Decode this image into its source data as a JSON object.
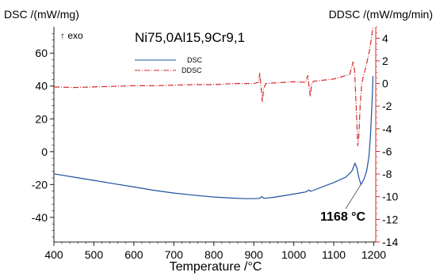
{
  "chart_data": {
    "type": "line",
    "title": "Ni75,0Al15,9Cr9,1",
    "xlabel": "Temperature /°C",
    "ylabel_left": "DSC /(mW/mg)",
    "ylabel_right": "DDSC /(mW/mg/min)",
    "exo_label": "↑ exo",
    "xlim": [
      400,
      1205
    ],
    "ylim_left": [
      -55,
      76
    ],
    "ylim_right": [
      -14,
      5
    ],
    "x_ticks": [
      400,
      500,
      600,
      700,
      800,
      900,
      1000,
      1100,
      1200
    ],
    "y_left_ticks": [
      60,
      40,
      20,
      0,
      -20,
      -40
    ],
    "y_right_ticks": [
      4,
      2,
      0,
      -2,
      -4,
      -6,
      -8,
      -10,
      -12,
      -14
    ],
    "grid": false,
    "legend_position": "top-center",
    "annotation": {
      "text": "1168 °C",
      "x": 1168,
      "y": -20,
      "axis": "left",
      "color": "#1f4fa0"
    },
    "series": [
      {
        "name": "DSC",
        "axis": "left",
        "color": "#1f4fa0",
        "style": "solid",
        "x": [
          400,
          450,
          500,
          550,
          600,
          650,
          700,
          750,
          800,
          850,
          880,
          900,
          915,
          920,
          925,
          950,
          1000,
          1030,
          1038,
          1042,
          1060,
          1100,
          1130,
          1145,
          1150,
          1153,
          1158,
          1163,
          1168,
          1175,
          1182,
          1188,
          1192,
          1196,
          1198
        ],
        "values": [
          -13.5,
          -15.5,
          -17.5,
          -19.5,
          -21.5,
          -23.5,
          -25.2,
          -26.5,
          -27.6,
          -28.3,
          -28.6,
          -28.6,
          -28.4,
          -27.3,
          -28.4,
          -27.8,
          -25.8,
          -24.5,
          -23.3,
          -24.2,
          -22.5,
          -18.8,
          -15.5,
          -12,
          -9,
          -7,
          -10,
          -16,
          -20,
          -17,
          -12,
          -3,
          10,
          32,
          46
        ]
      },
      {
        "name": "DDSC",
        "axis": "right",
        "color": "#d42a2a",
        "style": "dashdot",
        "x": [
          400,
          450,
          500,
          550,
          600,
          650,
          700,
          750,
          800,
          850,
          900,
          912,
          915,
          918,
          921,
          925,
          930,
          950,
          1000,
          1030,
          1035,
          1038,
          1041,
          1045,
          1050,
          1100,
          1140,
          1148,
          1152,
          1156,
          1160,
          1163,
          1166,
          1170,
          1175,
          1180,
          1185,
          1190,
          1194,
          1198
        ],
        "values": [
          -0.3,
          -0.35,
          -0.3,
          -0.25,
          -0.2,
          -0.2,
          -0.15,
          -0.1,
          -0.1,
          0,
          0,
          0.1,
          0.9,
          -0.3,
          -1.6,
          -0.4,
          0,
          0.05,
          0.15,
          0.1,
          0.7,
          -0.2,
          -1.1,
          0,
          0.2,
          0.4,
          0.8,
          1.9,
          1.2,
          -2,
          -5.5,
          -4.5,
          -2,
          0,
          0.8,
          1.4,
          2.2,
          3,
          4,
          5
        ]
      }
    ]
  }
}
